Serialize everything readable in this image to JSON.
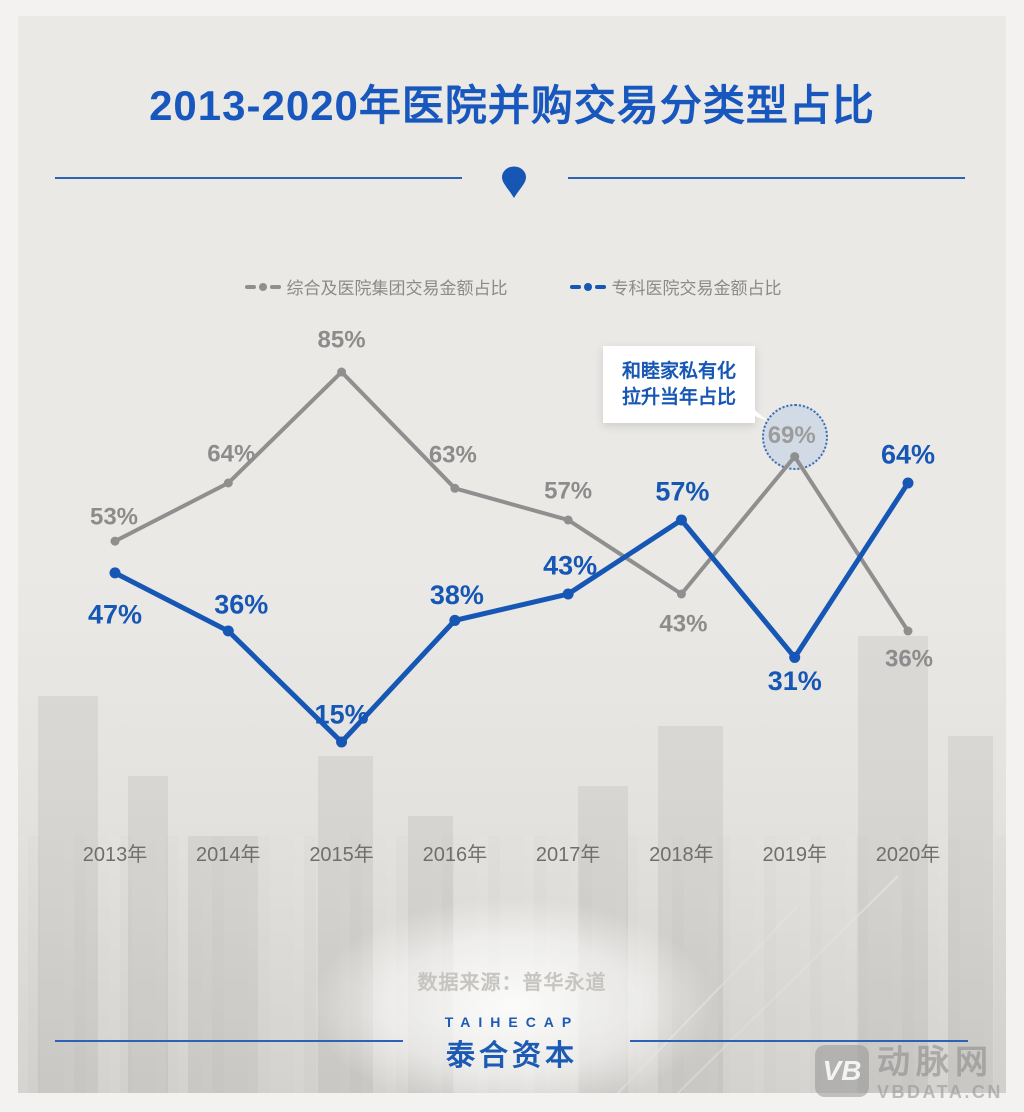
{
  "title": "2013-2020年医院并购交易分类型占比",
  "legend": [
    {
      "label": "综合及医院集团交易金额占比",
      "color": "#8f8f8f"
    },
    {
      "label": "专科医院交易金额占比",
      "color": "#1656b4"
    }
  ],
  "annotation": {
    "line1": "和睦家私有化",
    "line2": "拉升当年占比",
    "highlighted_value": "69%"
  },
  "source": {
    "label": "数据来源：普华永道"
  },
  "footer_logo": {
    "en": "TAIHECAP",
    "cn": "泰合资本"
  },
  "watermark": {
    "logo": "VB",
    "name": "动脉网",
    "site": "VBDATA.CN"
  },
  "colors": {
    "accent_blue": "#1656b4",
    "title_blue": "#1857bd",
    "series_gray": "#8f8f8f"
  },
  "chart_data": {
    "type": "line",
    "title": "2013-2020年医院并购交易分类型占比",
    "categories": [
      "2013年",
      "2014年",
      "2015年",
      "2016年",
      "2017年",
      "2018年",
      "2019年",
      "2020年"
    ],
    "series": [
      {
        "name": "综合及医院集团交易金额占比",
        "color": "#8f8f8f",
        "values": [
          53,
          64,
          85,
          63,
          57,
          43,
          69,
          36
        ]
      },
      {
        "name": "专科医院交易金额占比",
        "color": "#1656b4",
        "values": [
          47,
          36,
          15,
          38,
          43,
          57,
          31,
          64
        ]
      }
    ],
    "unit": "%",
    "ylim": [
      0,
      100
    ],
    "grid": false,
    "legend_position": "top",
    "annotated_point": {
      "series": "综合及医院集团交易金额占比",
      "category": "2019年",
      "value": 69,
      "note": "和睦家私有化拉升当年占比"
    }
  }
}
